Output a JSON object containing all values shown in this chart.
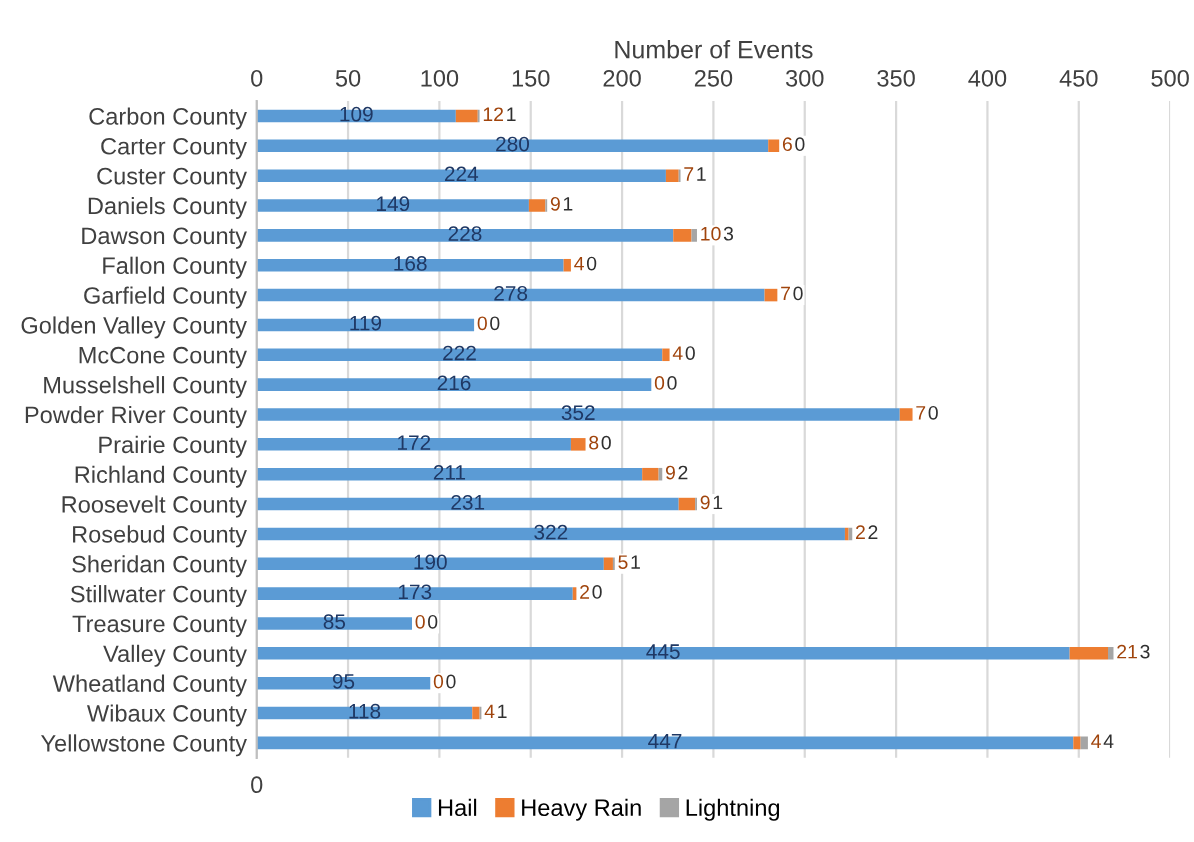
{
  "chart_data": {
    "type": "bar",
    "orientation": "horizontal",
    "stacked": true,
    "categories": [
      "Carbon County",
      "Carter County",
      "Custer County",
      "Daniels County",
      "Dawson County",
      "Fallon County",
      "Garfield County",
      "Golden Valley County",
      "McCone County",
      "Musselshell County",
      "Powder River County",
      "Prairie County",
      "Richland County",
      "Roosevelt County",
      "Rosebud County",
      "Sheridan County",
      "Stillwater County",
      "Treasure County",
      "Valley County",
      "Wheatland County",
      "Wibaux County",
      "Yellowstone County"
    ],
    "series": [
      {
        "name": "Hail",
        "color": "#5b9bd5",
        "values": [
          109,
          280,
          224,
          149,
          228,
          168,
          278,
          119,
          222,
          216,
          352,
          172,
          211,
          231,
          322,
          190,
          173,
          85,
          445,
          95,
          118,
          447
        ]
      },
      {
        "name": "Heavy Rain",
        "color": "#ed7d31",
        "values": [
          12,
          6,
          7,
          9,
          10,
          4,
          7,
          0,
          4,
          0,
          7,
          8,
          9,
          9,
          2,
          5,
          2,
          0,
          21,
          0,
          4,
          4
        ]
      },
      {
        "name": "Lightning",
        "color": "#a5a5a5",
        "values": [
          1,
          0,
          1,
          1,
          3,
          0,
          0,
          0,
          0,
          0,
          0,
          0,
          2,
          1,
          2,
          1,
          0,
          0,
          3,
          0,
          1,
          4
        ]
      }
    ],
    "x2lim": [
      0,
      500
    ],
    "x2ticks": [
      0,
      50,
      100,
      150,
      200,
      250,
      300,
      350,
      400,
      450,
      500
    ],
    "x2label": "Number of Events",
    "annotations": [
      "0"
    ],
    "data_labels": true,
    "grid": "x",
    "legend": "bottom"
  }
}
